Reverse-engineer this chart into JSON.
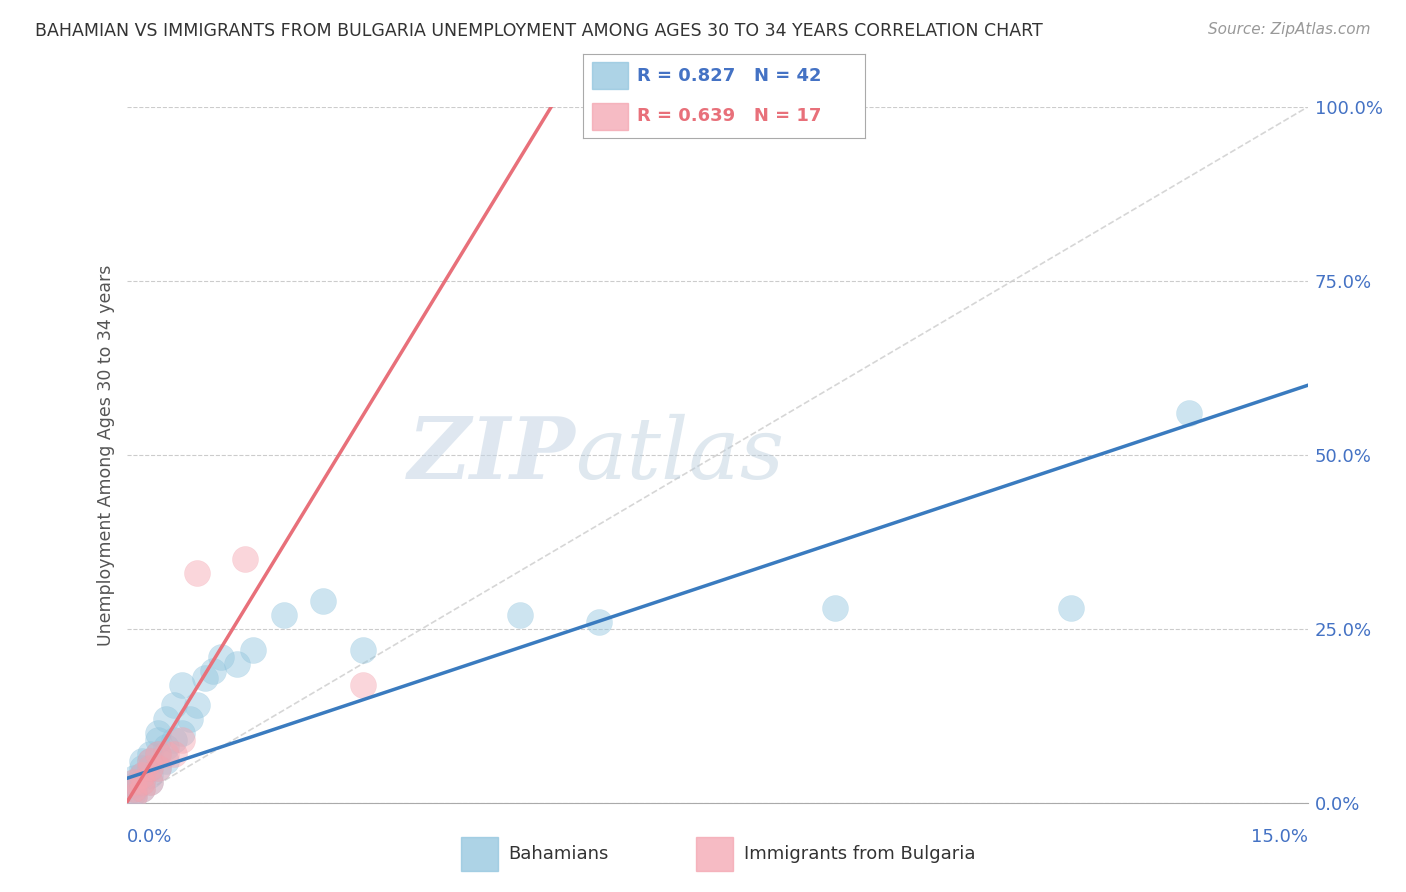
{
  "title": "BAHAMIAN VS IMMIGRANTS FROM BULGARIA UNEMPLOYMENT AMONG AGES 30 TO 34 YEARS CORRELATION CHART",
  "source": "Source: ZipAtlas.com",
  "ylabel": "Unemployment Among Ages 30 to 34 years",
  "legend_bahamian": "Bahamians",
  "legend_bulgaria": "Immigrants from Bulgaria",
  "R_bahamian": 0.827,
  "N_bahamian": 42,
  "R_bulgaria": 0.639,
  "N_bulgaria": 17,
  "bahamian_color": "#92c5de",
  "bulgaria_color": "#f4a5b0",
  "bahamian_line_color": "#3a7bbf",
  "bulgaria_line_color": "#e8707a",
  "diagonal_color": "#cccccc",
  "title_color": "#333333",
  "axis_label_color": "#4472c4",
  "watermark_zip_color": "#c8d8e8",
  "watermark_atlas_color": "#b8c8d8",
  "xlim": [
    0.0,
    0.15
  ],
  "ylim": [
    0.0,
    1.0
  ],
  "ytick_vals": [
    0.0,
    0.25,
    0.5,
    0.75,
    1.0
  ],
  "ytick_labels": [
    "0.0%",
    "25.0%",
    "50.0%",
    "75.0%",
    "100.0%"
  ],
  "bahamian_x": [
    0.001,
    0.001,
    0.001,
    0.001,
    0.001,
    0.001,
    0.002,
    0.002,
    0.002,
    0.002,
    0.002,
    0.003,
    0.003,
    0.003,
    0.003,
    0.003,
    0.004,
    0.004,
    0.004,
    0.004,
    0.005,
    0.005,
    0.005,
    0.006,
    0.006,
    0.007,
    0.007,
    0.008,
    0.009,
    0.01,
    0.011,
    0.012,
    0.014,
    0.016,
    0.02,
    0.025,
    0.03,
    0.05,
    0.06,
    0.09,
    0.12,
    0.135
  ],
  "bahamian_y": [
    0.01,
    0.015,
    0.02,
    0.025,
    0.03,
    0.035,
    0.02,
    0.03,
    0.04,
    0.05,
    0.06,
    0.03,
    0.04,
    0.05,
    0.06,
    0.07,
    0.05,
    0.07,
    0.09,
    0.1,
    0.06,
    0.08,
    0.12,
    0.09,
    0.14,
    0.1,
    0.17,
    0.12,
    0.14,
    0.18,
    0.19,
    0.21,
    0.2,
    0.22,
    0.27,
    0.29,
    0.22,
    0.27,
    0.26,
    0.28,
    0.28,
    0.56
  ],
  "bulgaria_x": [
    0.001,
    0.001,
    0.001,
    0.002,
    0.002,
    0.002,
    0.003,
    0.003,
    0.003,
    0.004,
    0.004,
    0.005,
    0.006,
    0.007,
    0.009,
    0.015,
    0.03
  ],
  "bulgaria_y": [
    0.01,
    0.02,
    0.03,
    0.02,
    0.03,
    0.04,
    0.03,
    0.05,
    0.06,
    0.05,
    0.07,
    0.07,
    0.07,
    0.09,
    0.33,
    0.35,
    0.17
  ],
  "bah_line_x0": 0.0,
  "bah_line_y0": 0.035,
  "bah_line_x1": 0.15,
  "bah_line_y1": 0.6,
  "bul_line_x0": 0.0,
  "bul_line_y0": 0.0,
  "bul_line_x1": 0.055,
  "bul_line_y1": 1.02
}
